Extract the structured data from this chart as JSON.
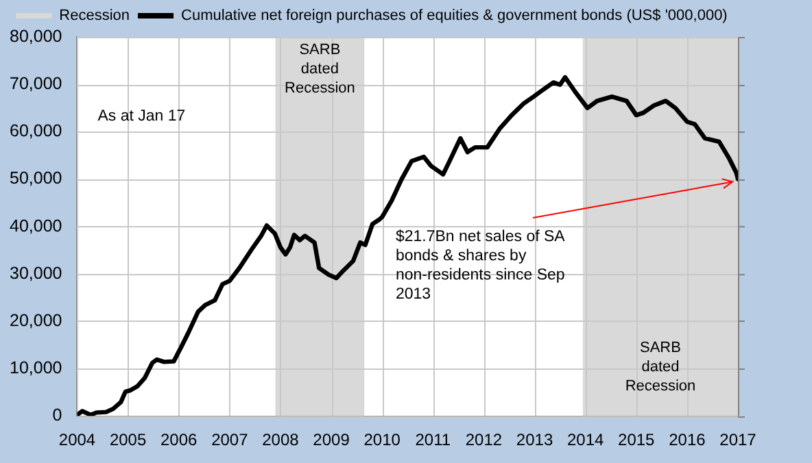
{
  "chart_data": {
    "type": "line",
    "series": [
      {
        "name": "Cumulative net foreign purchases of equities & government bonds (US$ '000,000)",
        "color": "#000000",
        "x": [
          2004.0,
          2004.1,
          2004.27,
          2004.38,
          2004.57,
          2004.71,
          2004.86,
          2004.95,
          2005.05,
          2005.19,
          2005.33,
          2005.48,
          2005.57,
          2005.71,
          2005.9,
          2006.05,
          2006.19,
          2006.38,
          2006.52,
          2006.71,
          2006.86,
          2007.0,
          2007.19,
          2007.43,
          2007.62,
          2007.73,
          2007.89,
          2008.0,
          2008.1,
          2008.19,
          2008.27,
          2008.38,
          2008.48,
          2008.67,
          2008.76,
          2008.95,
          2009.1,
          2009.24,
          2009.43,
          2009.57,
          2009.67,
          2009.81,
          2009.95,
          2010.0,
          2010.19,
          2010.38,
          2010.58,
          2010.82,
          2010.96,
          2011.2,
          2011.35,
          2011.54,
          2011.68,
          2011.83,
          2012.07,
          2012.31,
          2012.55,
          2012.79,
          2012.98,
          2013.17,
          2013.37,
          2013.5,
          2013.6,
          2013.8,
          2014.04,
          2014.23,
          2014.52,
          2014.81,
          2015.0,
          2015.14,
          2015.34,
          2015.58,
          2015.77,
          2016.0,
          2016.15,
          2016.35,
          2016.63,
          2016.83,
          2016.97,
          2017.0
        ],
        "values": [
          200,
          1000,
          200,
          700,
          800,
          1500,
          2900,
          5100,
          5400,
          6300,
          8000,
          11200,
          11900,
          11400,
          11500,
          14600,
          17600,
          22000,
          23400,
          24400,
          27800,
          28500,
          31200,
          35100,
          38000,
          40200,
          38500,
          35600,
          34100,
          35600,
          38200,
          37100,
          38000,
          36600,
          31200,
          29800,
          29100,
          30700,
          32700,
          36600,
          36100,
          40500,
          41500,
          42000,
          45500,
          49900,
          53800,
          54700,
          52800,
          51000,
          54300,
          58600,
          55700,
          56700,
          56700,
          60600,
          63500,
          66000,
          67400,
          68900,
          70400,
          69900,
          71500,
          68400,
          65000,
          66500,
          67400,
          66500,
          63500,
          64000,
          65500,
          66500,
          65000,
          62100,
          61600,
          58600,
          57900,
          54300,
          51300,
          50000
        ]
      }
    ],
    "xlim": [
      2004,
      2017
    ],
    "xticks": [
      2004,
      2005,
      2006,
      2007,
      2008,
      2009,
      2010,
      2011,
      2012,
      2013,
      2014,
      2015,
      2016,
      2017
    ],
    "ylim": [
      0,
      80000
    ],
    "yticks": [
      {
        "value": 0,
        "label": "0"
      },
      {
        "value": 10000,
        "label": "10,000"
      },
      {
        "value": 20000,
        "label": "20,000"
      },
      {
        "value": 30000,
        "label": "30,000"
      },
      {
        "value": 40000,
        "label": "40,000"
      },
      {
        "value": 50000,
        "label": "50,000"
      },
      {
        "value": 60000,
        "label": "60,000"
      },
      {
        "value": 70000,
        "label": "70,000"
      },
      {
        "value": 80000,
        "label": "80,000"
      }
    ],
    "bands": [
      {
        "axis": "x",
        "from": 2007.9,
        "to": 2009.65,
        "label": "SARB dated Recession",
        "color": "#d9d9d9"
      },
      {
        "axis": "x",
        "from": 2013.95,
        "to": 2017,
        "label": "SARB dated Recession",
        "color": "#d9d9d9"
      }
    ],
    "annotations": [
      "Recession",
      "As at Jan 17",
      {
        "text": "$21.7Bn net sales of SA bonds & shares by non-residents since Sep 2013",
        "x": 2017,
        "y": 50000
      }
    ],
    "grid": true,
    "legend": "top",
    "marker": "none",
    "line_style": "solid"
  }
}
